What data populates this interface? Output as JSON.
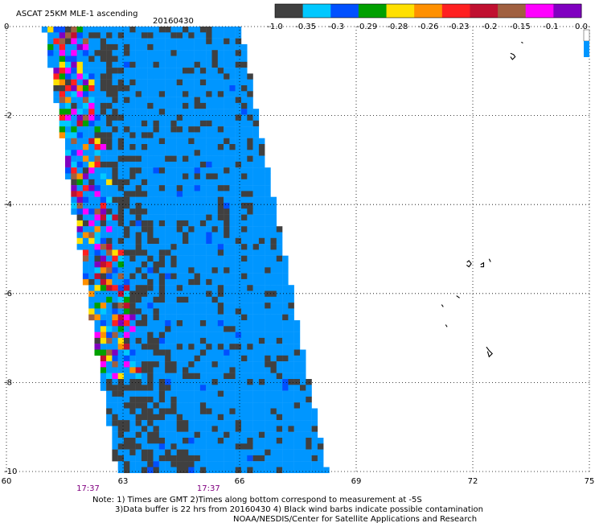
{
  "header": {
    "title": "ASCAT 25KM MLE-1 ascending",
    "date": "20160430"
  },
  "colorbar": {
    "labels": [
      "-1.0",
      "-0.35",
      "-0.3",
      "-0.29",
      "-0.28",
      "-0.26",
      "-0.23",
      "-0.2",
      "-0.15",
      "-0.1",
      "0.0"
    ],
    "colors": [
      "#404040",
      "#00c8ff",
      "#0050ff",
      "#00a000",
      "#ffe000",
      "#ff9000",
      "#ff2020",
      "#c01030",
      "#a06040",
      "#ff00ff",
      "#8000c0"
    ]
  },
  "map": {
    "lon_range": [
      60,
      75
    ],
    "lat_range": [
      -10,
      0
    ],
    "x_ticks": [
      "60",
      "63",
      "66",
      "69",
      "72",
      "75"
    ],
    "y_ticks": [
      "0",
      "-2",
      "-4",
      "-6",
      "-8",
      "-10"
    ],
    "pass_times": [
      "17:37",
      "17:37"
    ],
    "swath_color": "#0096ff",
    "dark_color": "#404040"
  },
  "notes": {
    "line1": "Note: 1) Times are GMT 2)Times along bottom correspond to measurement at -5S",
    "line2": "3)Data buffer is 22 hrs from 20160430 4) Black wind barbs indicate possible contamination",
    "line3": "NOAA/NESDIS/Center for Satellite Applications and Research"
  }
}
